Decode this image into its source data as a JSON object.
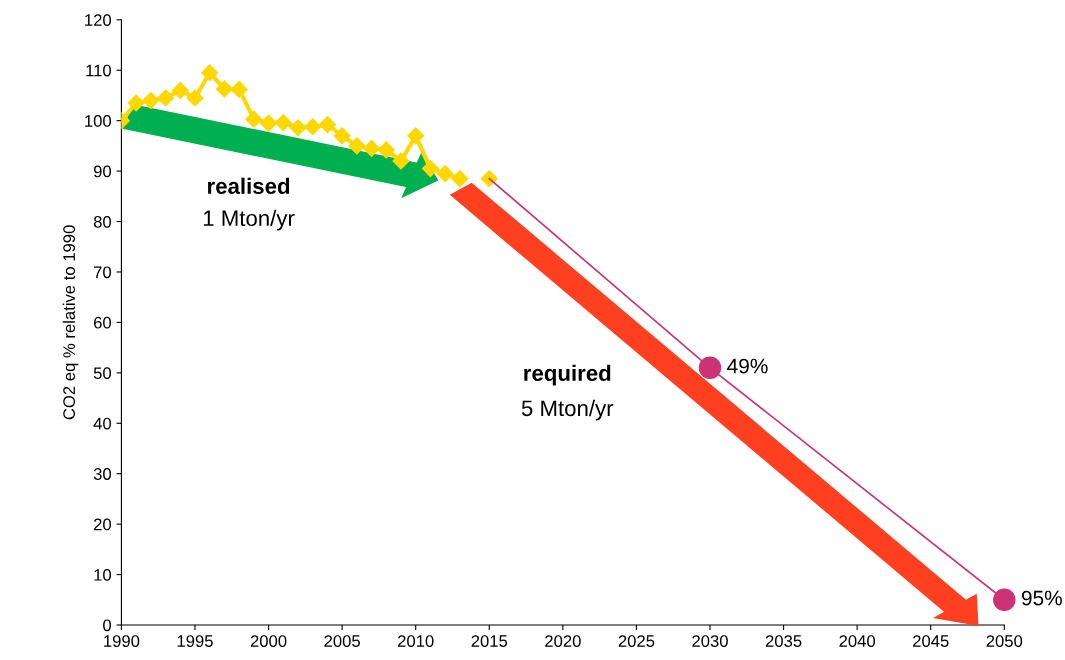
{
  "chart_data": {
    "type": "line",
    "ylabel": "CO2 eq % relative to 1990",
    "xlim": [
      1990,
      2050
    ],
    "xticks": [
      1990,
      1995,
      2000,
      2005,
      2010,
      2015,
      2020,
      2025,
      2030,
      2035,
      2040,
      2045,
      2050
    ],
    "ylim": [
      0,
      120
    ],
    "yticks": [
      0,
      10,
      20,
      30,
      40,
      50,
      60,
      70,
      80,
      90,
      100,
      110,
      120
    ],
    "grid": false,
    "series": [
      {
        "color": "#ffd700",
        "marker": "diamond",
        "x": [
          1990,
          1991,
          1992,
          1993,
          1994,
          1995,
          1996,
          1997,
          1998,
          1999,
          2000,
          2001,
          2002,
          2003,
          2004,
          2005,
          2006,
          2007,
          2008,
          2009,
          2010,
          2011,
          2012,
          2013,
          2014,
          2015
        ],
        "values": [
          100,
          103.5,
          104,
          104.5,
          106,
          104.5,
          109.5,
          106.3,
          106.2,
          100.3,
          99.5,
          99.6,
          98.6,
          98.8,
          99.2,
          97,
          95,
          94.5,
          94.2,
          92,
          97,
          90.5,
          89.5,
          88.5,
          null,
          88.5
        ]
      },
      {
        "color": "#cc3377",
        "marker": "none",
        "x": [
          2015,
          2030,
          2050
        ],
        "values": [
          88.5,
          51,
          5
        ]
      },
      {
        "type": "scatter",
        "color": "#cc3377",
        "marker": "circle",
        "x": [
          2030,
          2050
        ],
        "values": [
          51,
          5
        ]
      }
    ],
    "annotations": [
      "realised",
      "1 Mton/yr",
      "required",
      "5 Mton/yr",
      {
        "text": "49%",
        "x": 2030,
        "y": 51
      },
      {
        "text": "95%",
        "x": 2050,
        "y": 5
      }
    ]
  }
}
